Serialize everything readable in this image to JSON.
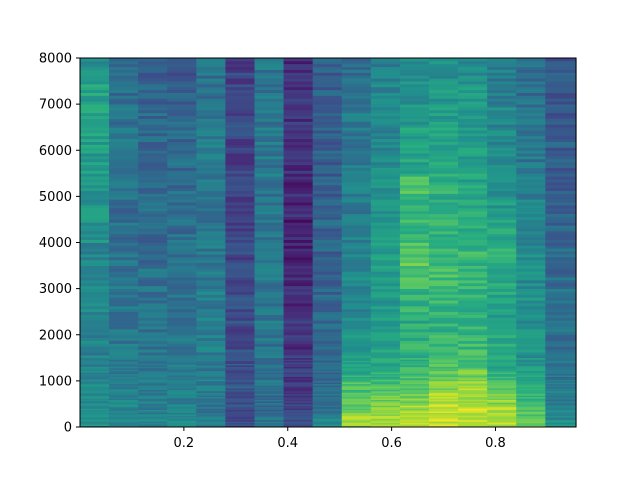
{
  "chart_data": {
    "type": "heatmap",
    "subtype": "spectrogram",
    "colormap": "viridis",
    "title": "",
    "xlabel": "",
    "ylabel": "",
    "xlim": [
      0.0,
      0.955
    ],
    "ylim": [
      0,
      8000
    ],
    "x_ticks": [
      0.2,
      0.4,
      0.6,
      0.8
    ],
    "x_tick_labels": [
      "0.2",
      "0.4",
      "0.6",
      "0.8"
    ],
    "y_ticks": [
      0,
      1000,
      2000,
      3000,
      4000,
      5000,
      6000,
      7000,
      8000
    ],
    "y_tick_labels": [
      "0",
      "1000",
      "2000",
      "3000",
      "4000",
      "5000",
      "6000",
      "7000",
      "8000"
    ],
    "grid": false,
    "time_bins": [
      0.0,
      0.056,
      0.112,
      0.168,
      0.224,
      0.28,
      0.336,
      0.392,
      0.448,
      0.504,
      0.56,
      0.616,
      0.672,
      0.728,
      0.784,
      0.84,
      0.896,
      0.955
    ],
    "freq_bands": [
      [
        0,
        250
      ],
      [
        250,
        500
      ],
      [
        500,
        750
      ],
      [
        750,
        1000
      ],
      [
        1000,
        1250
      ],
      [
        1250,
        1500
      ],
      [
        1500,
        2000
      ],
      [
        2000,
        2500
      ],
      [
        2500,
        3000
      ],
      [
        3000,
        3500
      ],
      [
        3500,
        4000
      ],
      [
        4000,
        4500
      ],
      [
        4500,
        5000
      ],
      [
        5000,
        5500
      ],
      [
        5500,
        6000
      ],
      [
        6000,
        6500
      ],
      [
        6500,
        7000
      ],
      [
        7000,
        7500
      ],
      [
        7500,
        8000
      ]
    ],
    "intensity_note": "normalized 0-1 (viridis), rows = time bins, columns = frequency bands low to high",
    "intensity": [
      [
        0.5,
        0.48,
        0.47,
        0.46,
        0.45,
        0.45,
        0.44,
        0.45,
        0.46,
        0.45,
        0.46,
        0.5,
        0.52,
        0.54,
        0.55,
        0.56,
        0.6,
        0.58,
        0.48
      ],
      [
        0.46,
        0.45,
        0.44,
        0.43,
        0.42,
        0.42,
        0.4,
        0.4,
        0.39,
        0.38,
        0.38,
        0.37,
        0.37,
        0.37,
        0.37,
        0.38,
        0.38,
        0.36,
        0.34
      ],
      [
        0.45,
        0.44,
        0.43,
        0.42,
        0.41,
        0.4,
        0.39,
        0.38,
        0.37,
        0.37,
        0.36,
        0.35,
        0.34,
        0.35,
        0.35,
        0.35,
        0.34,
        0.33,
        0.28
      ],
      [
        0.46,
        0.45,
        0.44,
        0.43,
        0.42,
        0.41,
        0.4,
        0.39,
        0.38,
        0.37,
        0.37,
        0.36,
        0.35,
        0.35,
        0.35,
        0.34,
        0.33,
        0.32,
        0.28
      ],
      [
        0.4,
        0.4,
        0.41,
        0.42,
        0.42,
        0.41,
        0.42,
        0.42,
        0.42,
        0.42,
        0.41,
        0.4,
        0.4,
        0.4,
        0.41,
        0.4,
        0.39,
        0.39,
        0.38
      ],
      [
        0.24,
        0.25,
        0.26,
        0.27,
        0.26,
        0.25,
        0.24,
        0.23,
        0.24,
        0.23,
        0.22,
        0.22,
        0.21,
        0.2,
        0.2,
        0.21,
        0.22,
        0.21,
        0.2
      ],
      [
        0.38,
        0.36,
        0.35,
        0.37,
        0.38,
        0.38,
        0.39,
        0.4,
        0.4,
        0.4,
        0.4,
        0.39,
        0.4,
        0.4,
        0.4,
        0.4,
        0.39,
        0.4,
        0.4
      ],
      [
        0.22,
        0.2,
        0.19,
        0.18,
        0.17,
        0.16,
        0.15,
        0.14,
        0.14,
        0.12,
        0.1,
        0.1,
        0.12,
        0.11,
        0.12,
        0.14,
        0.15,
        0.14,
        0.13
      ],
      [
        0.5,
        0.38,
        0.36,
        0.35,
        0.34,
        0.34,
        0.33,
        0.33,
        0.33,
        0.33,
        0.32,
        0.32,
        0.32,
        0.31,
        0.31,
        0.31,
        0.3,
        0.3,
        0.3
      ],
      [
        0.85,
        0.78,
        0.72,
        0.7,
        0.62,
        0.58,
        0.55,
        0.5,
        0.48,
        0.46,
        0.45,
        0.44,
        0.42,
        0.42,
        0.41,
        0.4,
        0.4,
        0.39,
        0.38
      ],
      [
        0.86,
        0.82,
        0.76,
        0.7,
        0.66,
        0.6,
        0.58,
        0.55,
        0.52,
        0.54,
        0.55,
        0.54,
        0.52,
        0.5,
        0.48,
        0.46,
        0.46,
        0.45,
        0.43
      ],
      [
        0.88,
        0.85,
        0.8,
        0.74,
        0.68,
        0.65,
        0.63,
        0.62,
        0.64,
        0.72,
        0.74,
        0.66,
        0.62,
        0.7,
        0.6,
        0.56,
        0.54,
        0.52,
        0.48
      ],
      [
        0.92,
        0.9,
        0.86,
        0.82,
        0.76,
        0.7,
        0.66,
        0.64,
        0.66,
        0.7,
        0.68,
        0.64,
        0.62,
        0.64,
        0.6,
        0.56,
        0.55,
        0.53,
        0.5
      ],
      [
        0.93,
        0.91,
        0.88,
        0.86,
        0.78,
        0.72,
        0.68,
        0.66,
        0.64,
        0.66,
        0.66,
        0.62,
        0.6,
        0.58,
        0.56,
        0.55,
        0.54,
        0.52,
        0.48
      ],
      [
        0.9,
        0.88,
        0.82,
        0.74,
        0.66,
        0.62,
        0.6,
        0.58,
        0.58,
        0.62,
        0.64,
        0.58,
        0.54,
        0.52,
        0.5,
        0.48,
        0.46,
        0.44,
        0.42
      ],
      [
        0.78,
        0.72,
        0.66,
        0.6,
        0.56,
        0.53,
        0.51,
        0.5,
        0.5,
        0.48,
        0.47,
        0.45,
        0.44,
        0.42,
        0.4,
        0.39,
        0.38,
        0.37,
        0.36
      ],
      [
        0.5,
        0.46,
        0.44,
        0.42,
        0.4,
        0.39,
        0.38,
        0.37,
        0.36,
        0.35,
        0.34,
        0.33,
        0.32,
        0.31,
        0.3,
        0.3,
        0.29,
        0.28,
        0.28
      ]
    ]
  }
}
